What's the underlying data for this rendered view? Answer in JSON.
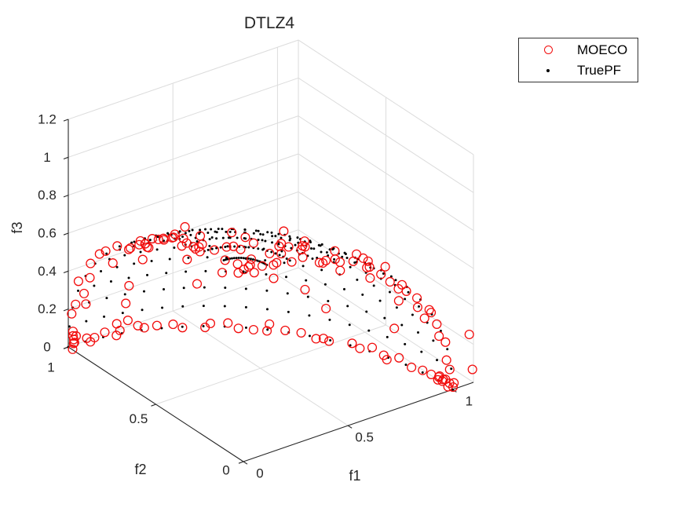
{
  "chart_data": {
    "type": "scatter3d",
    "title": "DTLZ4",
    "xlabel": "f1",
    "ylabel": "f2",
    "zlabel": "f3",
    "xlim": [
      0,
      1.1
    ],
    "ylim": [
      0,
      1
    ],
    "zlim": [
      0,
      1.2
    ],
    "xticks": {
      "values": [
        0,
        0.5,
        1
      ],
      "labels": [
        "0",
        "0.5",
        "1"
      ]
    },
    "yticks": {
      "values": [
        0,
        0.5,
        1
      ],
      "labels": [
        "0",
        "0.5",
        "1"
      ]
    },
    "zticks": {
      "values": [
        0,
        0.2,
        0.4,
        0.6,
        0.8,
        1,
        1.2
      ],
      "labels": [
        "0",
        "0.2",
        "0.4",
        "0.6",
        "0.8",
        "1",
        "1.2"
      ]
    },
    "view": {
      "azimuth": -37.5,
      "elevation": 30
    },
    "grid": true,
    "pareto_surface": "f1^2 + f2^2 + f3^2 = 1, fi >= 0",
    "series": [
      {
        "name": "MOECO",
        "marker": "open-circle",
        "color": "#f20d0d",
        "marker_radius": 5.4,
        "stroke_width": 1.3,
        "generator": {
          "kind": "sphere-octant-random",
          "seed": 1337,
          "edge_arcs": {
            "f3_zero": 34,
            "f1_zero": 22,
            "f2_zero": 24
          },
          "edge_end_clusters": {
            "near_f1_end": 7,
            "near_f2_end": 5
          },
          "interior": 66,
          "interior_top_bias": 0.62,
          "radial_jitter": 0.05,
          "extra_points": [
            [
              1.08,
              0,
              0.26
            ],
            [
              1.095,
              0,
              0.07
            ]
          ]
        }
      },
      {
        "name": "TruePF",
        "marker": "dot",
        "color": "#000000",
        "marker_radius": 1.5,
        "generator": {
          "kind": "sphere-octant-grid",
          "n_azimuth": 21,
          "n_elevation": 15
        }
      }
    ]
  },
  "legend": {
    "items": [
      {
        "label": "MOECO",
        "marker": "open-circle",
        "color": "#f20d0d"
      },
      {
        "label": "TruePF",
        "marker": "dot",
        "color": "#000000"
      }
    ]
  }
}
